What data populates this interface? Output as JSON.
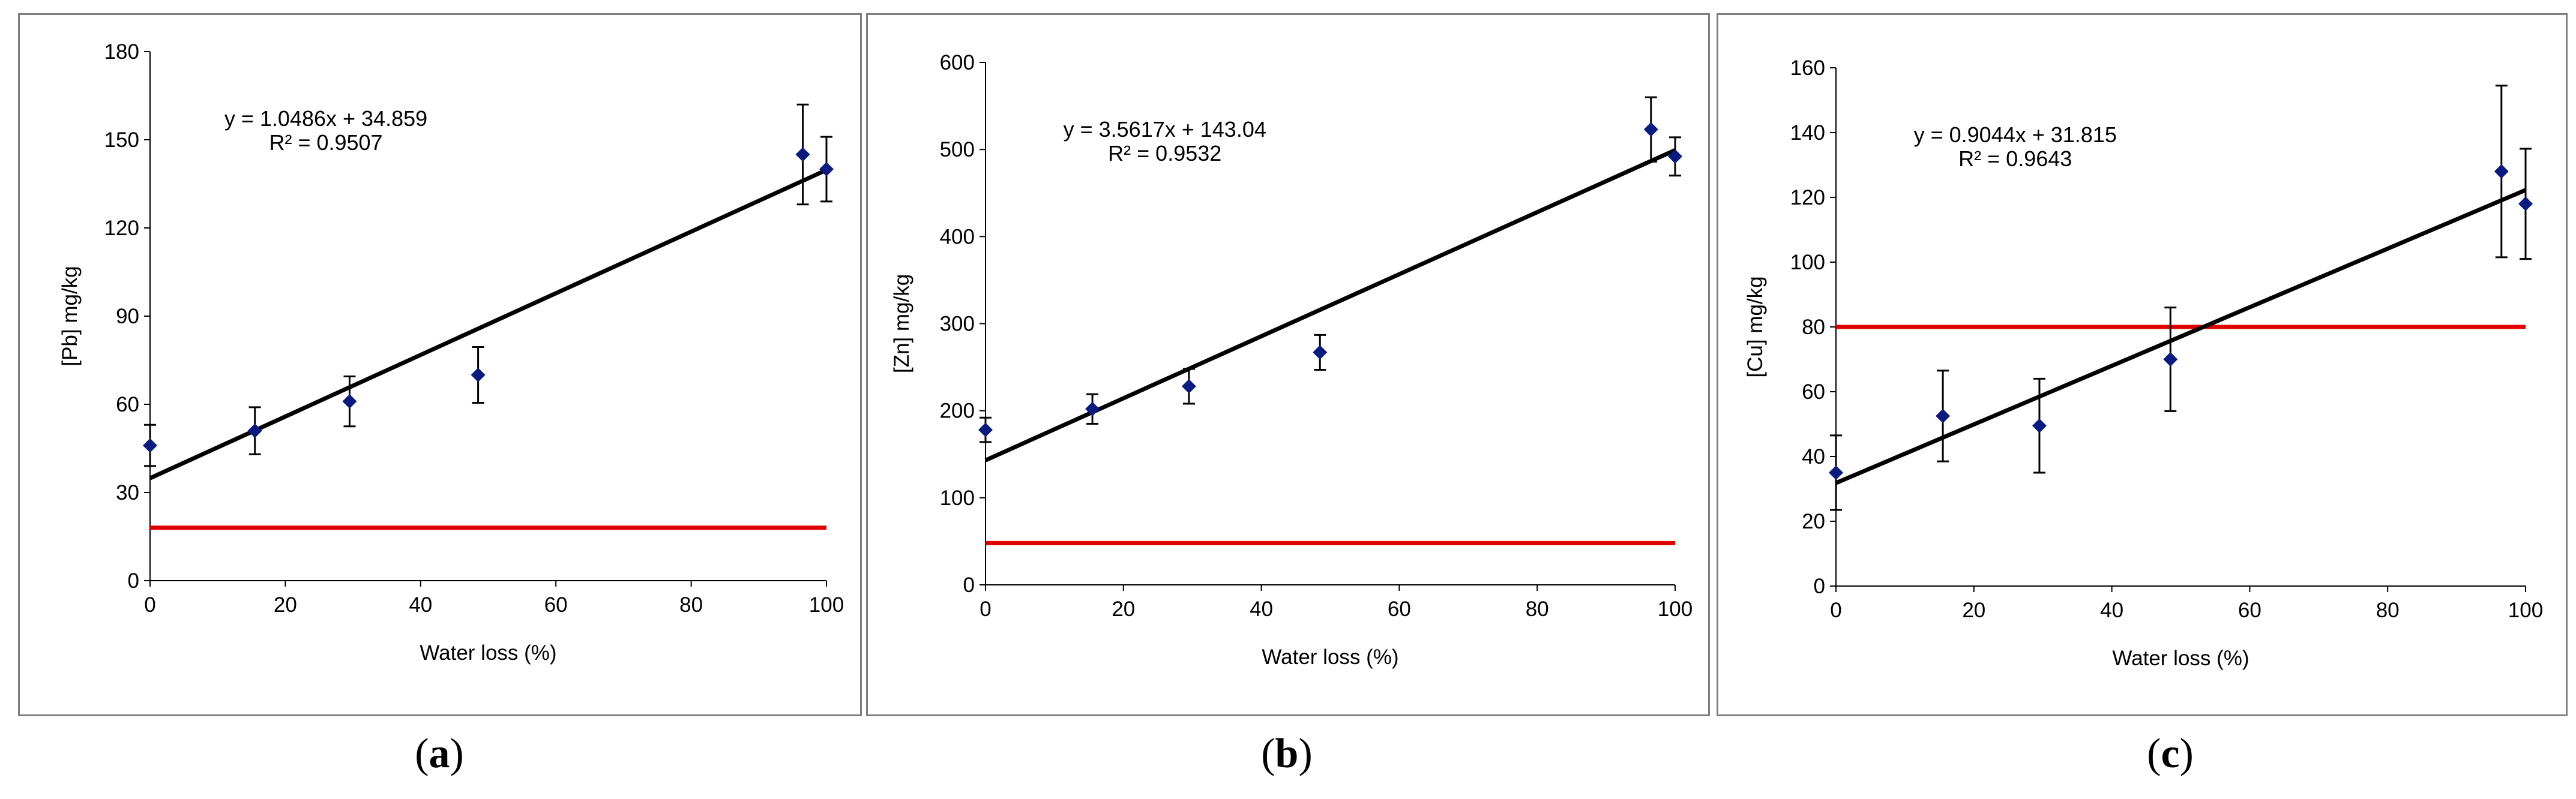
{
  "chart_data": [
    {
      "type": "scatter",
      "panel_label": "a",
      "xlabel": "Water loss (%)",
      "ylabel": "[Pb] mg/kg",
      "xlim": [
        0,
        100
      ],
      "ylim": [
        0,
        180
      ],
      "x_ticks": [
        0,
        20,
        40,
        60,
        80,
        100
      ],
      "y_ticks": [
        0,
        30,
        60,
        90,
        120,
        150,
        180
      ],
      "points": [
        {
          "x": 0,
          "y": 46,
          "err": 7
        },
        {
          "x": 15.5,
          "y": 51,
          "err": 8
        },
        {
          "x": 29.5,
          "y": 61,
          "err": 8.5
        },
        {
          "x": 48.5,
          "y": 70,
          "err": 9.5
        },
        {
          "x": 96.5,
          "y": 145,
          "err": 17
        },
        {
          "x": 100,
          "y": 140,
          "err": 11
        }
      ],
      "trendline": {
        "slope": 1.0486,
        "intercept": 34.859
      },
      "equation": "y = 1.0486x + 34.859",
      "r_squared": "R² = 0.9507",
      "reference_line": 18,
      "colors": {
        "marker": "#0a1a80",
        "trend": "#000000",
        "reference": "#e00000"
      }
    },
    {
      "type": "scatter",
      "panel_label": "b",
      "xlabel": "Water loss (%)",
      "ylabel": "[Zn] mg/kg",
      "xlim": [
        0,
        100
      ],
      "ylim": [
        0,
        600
      ],
      "x_ticks": [
        0,
        20,
        40,
        60,
        80,
        100
      ],
      "y_ticks": [
        0,
        100,
        200,
        300,
        400,
        500,
        600
      ],
      "points": [
        {
          "x": 0,
          "y": 178,
          "err": 14
        },
        {
          "x": 15.5,
          "y": 202,
          "err": 17
        },
        {
          "x": 29.5,
          "y": 228,
          "err": 20
        },
        {
          "x": 48.5,
          "y": 267,
          "err": 20
        },
        {
          "x": 96.5,
          "y": 523,
          "err": 37
        },
        {
          "x": 100,
          "y": 492,
          "err": 22
        }
      ],
      "trendline": {
        "slope": 3.5617,
        "intercept": 143.04
      },
      "equation": "y = 3.5617x + 143.04",
      "r_squared": "R² = 0.9532",
      "reference_line": 48,
      "colors": {
        "marker": "#0a1a80",
        "trend": "#000000",
        "reference": "#e00000"
      }
    },
    {
      "type": "scatter",
      "panel_label": "c",
      "xlabel": "Water loss (%)",
      "ylabel": "[Cu] mg/kg",
      "xlim": [
        0,
        100
      ],
      "ylim": [
        0,
        160
      ],
      "x_ticks": [
        0,
        20,
        40,
        60,
        80,
        100
      ],
      "y_ticks": [
        0,
        20,
        40,
        60,
        80,
        100,
        120,
        140,
        160
      ],
      "points": [
        {
          "x": 0,
          "y": 35,
          "err": 11.5
        },
        {
          "x": 15.5,
          "y": 52.5,
          "err": 14
        },
        {
          "x": 29.5,
          "y": 49.5,
          "err": 14.5
        },
        {
          "x": 48.5,
          "y": 70,
          "err": 16
        },
        {
          "x": 96.5,
          "y": 128,
          "err": 26.5
        },
        {
          "x": 100,
          "y": 118,
          "err": 17
        }
      ],
      "trendline": {
        "slope": 0.9044,
        "intercept": 31.815
      },
      "equation": "y = 0.9044x + 31.815",
      "r_squared": "R² = 0.9643",
      "reference_line": 80,
      "colors": {
        "marker": "#0a1a80",
        "trend": "#000000",
        "reference": "#e00000"
      }
    }
  ]
}
